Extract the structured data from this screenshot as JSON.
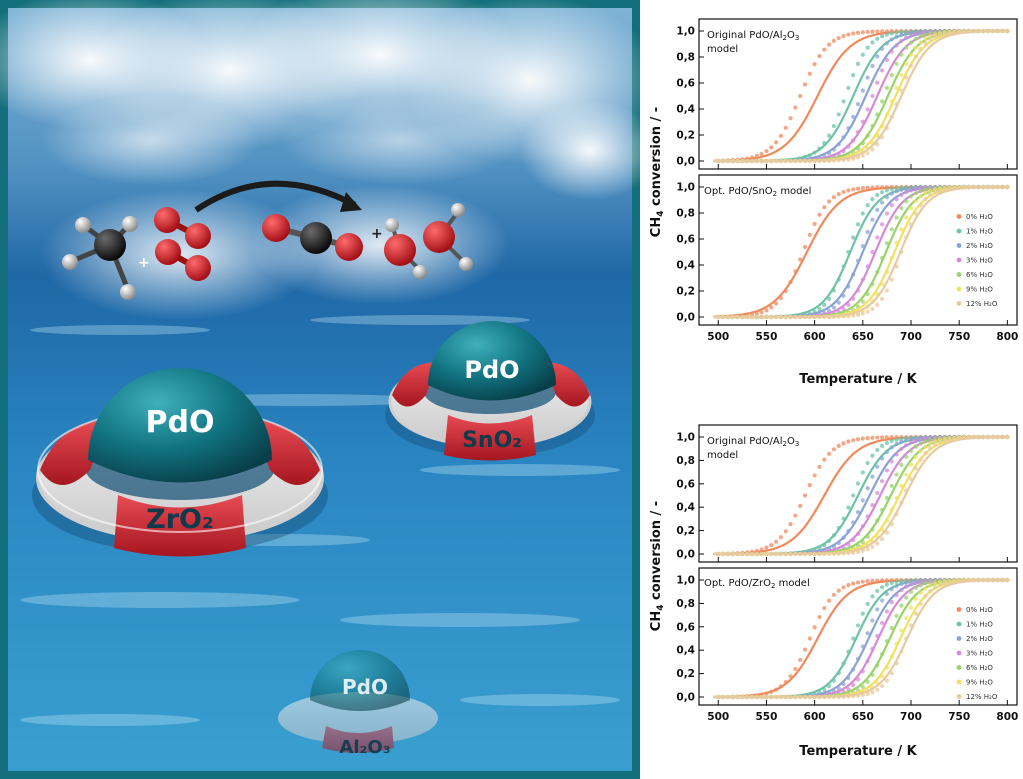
{
  "illustration": {
    "reactant_plus": "+",
    "product_plus": "+",
    "particle_large_label": "PdO",
    "support_large_label": "ZrO₂",
    "particle_right_label": "PdO",
    "support_right_label": "SnO₂",
    "particle_sunk_label": "PdO",
    "support_sunk_label": "Al₂O₃"
  },
  "chart_data": [
    {
      "type": "line",
      "panel": "top-upper",
      "annotation": "Original PdO/Al₂O₃ model",
      "annotation_line1": "Original PdO/Al",
      "annotation_line1_sub": "2",
      "annotation_line1_tail": "O",
      "annotation_line1_sub2": "3",
      "annotation_line2": "model",
      "ylim": [
        0,
        1.0
      ],
      "xlim": [
        480,
        810
      ],
      "yticks": [
        "0,0",
        "0,2",
        "0,4",
        "0,6",
        "0,8",
        "1,0"
      ],
      "grid": false,
      "series": [
        {
          "water": 0,
          "color": "#f08a5d",
          "model_T50": 603,
          "model_width": 17,
          "data_T50": 585,
          "data_width": 14
        },
        {
          "water": 1,
          "color": "#6cc3a6",
          "model_T50": 640,
          "model_width": 15,
          "data_T50": 632,
          "data_width": 12
        },
        {
          "water": 2,
          "color": "#8aa3d6",
          "model_T50": 653,
          "model_width": 15,
          "data_T50": 648,
          "data_width": 12
        },
        {
          "water": 3,
          "color": "#d68ad6",
          "model_T50": 665,
          "model_width": 15,
          "data_T50": 660,
          "data_width": 12
        },
        {
          "water": 6,
          "color": "#98d36a",
          "model_T50": 676,
          "model_width": 15,
          "data_T50": 672,
          "data_width": 12
        },
        {
          "water": 9,
          "color": "#f2e060",
          "model_T50": 684,
          "model_width": 15,
          "data_T50": 682,
          "data_width": 12
        },
        {
          "water": 12,
          "color": "#e8c9a0",
          "model_T50": 690,
          "model_width": 15,
          "data_T50": 688,
          "data_width": 12
        }
      ]
    },
    {
      "type": "line",
      "panel": "top-lower",
      "annotation": "Opt. PdO/SnO₂ model",
      "annotation_line1": "Opt. PdO/SnO",
      "annotation_line1_sub": "2",
      "annotation_line1_tail": " model",
      "ylim": [
        0,
        1.0
      ],
      "xlim": [
        480,
        810
      ],
      "xticks": [
        "500",
        "550",
        "600",
        "650",
        "700",
        "750",
        "800"
      ],
      "yticks": [
        "0,0",
        "0,2",
        "0,4",
        "0,6",
        "0,8",
        "1,0"
      ],
      "xlabel": "Temperature / K",
      "legend": [
        "0% H₂O",
        "1% H₂O",
        "2% H₂O",
        "3% H₂O",
        "6% H₂O",
        "9% H₂O",
        "12% H₂O"
      ],
      "legend_position": "right",
      "grid": false,
      "series": [
        {
          "water": 0,
          "color": "#f08a5d",
          "model_T50": 592,
          "model_width": 17,
          "data_T50": 588,
          "data_width": 13
        },
        {
          "water": 1,
          "color": "#6cc3a6",
          "model_T50": 637,
          "model_width": 14,
          "data_T50": 635,
          "data_width": 11
        },
        {
          "water": 2,
          "color": "#8aa3d6",
          "model_T50": 650,
          "model_width": 14,
          "data_T50": 648,
          "data_width": 11
        },
        {
          "water": 3,
          "color": "#d68ad6",
          "model_T50": 663,
          "model_width": 14,
          "data_T50": 660,
          "data_width": 11
        },
        {
          "water": 6,
          "color": "#98d36a",
          "model_T50": 674,
          "model_width": 14,
          "data_T50": 672,
          "data_width": 11
        },
        {
          "water": 9,
          "color": "#f2e060",
          "model_T50": 683,
          "model_width": 14,
          "data_T50": 682,
          "data_width": 11
        },
        {
          "water": 12,
          "color": "#e8c9a0",
          "model_T50": 689,
          "model_width": 14,
          "data_T50": 690,
          "data_width": 11
        }
      ]
    },
    {
      "type": "line",
      "panel": "bottom-upper",
      "annotation": "Original PdO/Al₂O₃ model",
      "annotation_line1": "Original PdO/Al",
      "annotation_line1_sub": "2",
      "annotation_line1_tail": "O",
      "annotation_line1_sub2": "3",
      "annotation_line2": "model",
      "ylim": [
        0,
        1.0
      ],
      "xlim": [
        480,
        810
      ],
      "yticks": [
        "0,0",
        "0,2",
        "0,4",
        "0,6",
        "0,8",
        "1,0"
      ],
      "grid": false,
      "series": [
        {
          "water": 0,
          "color": "#f08a5d",
          "model_T50": 610,
          "model_width": 17,
          "data_T50": 590,
          "data_width": 14
        },
        {
          "water": 1,
          "color": "#6cc3a6",
          "model_T50": 645,
          "model_width": 15,
          "data_T50": 640,
          "data_width": 12
        },
        {
          "water": 2,
          "color": "#8aa3d6",
          "model_T50": 657,
          "model_width": 15,
          "data_T50": 652,
          "data_width": 12
        },
        {
          "water": 3,
          "color": "#d68ad6",
          "model_T50": 668,
          "model_width": 15,
          "data_T50": 664,
          "data_width": 12
        },
        {
          "water": 6,
          "color": "#98d36a",
          "model_T50": 679,
          "model_width": 15,
          "data_T50": 676,
          "data_width": 12
        },
        {
          "water": 9,
          "color": "#f2e060",
          "model_T50": 688,
          "model_width": 15,
          "data_T50": 686,
          "data_width": 12
        },
        {
          "water": 12,
          "color": "#e8c9a0",
          "model_T50": 694,
          "model_width": 15,
          "data_T50": 693,
          "data_width": 12
        }
      ]
    },
    {
      "type": "line",
      "panel": "bottom-lower",
      "annotation": "Opt. PdO/ZrO₂ model",
      "annotation_line1": "Opt. PdO/ZrO",
      "annotation_line1_sub": "2",
      "annotation_line1_tail": " model",
      "ylim": [
        0,
        1.0
      ],
      "xlim": [
        480,
        810
      ],
      "xticks": [
        "500",
        "550",
        "600",
        "650",
        "700",
        "750",
        "800"
      ],
      "yticks": [
        "0,0",
        "0,2",
        "0,4",
        "0,6",
        "0,8",
        "1,0"
      ],
      "xlabel": "Temperature / K",
      "legend": [
        "0% H₂O",
        "1% H₂O",
        "2% H₂O",
        "3% H₂O",
        "6% H₂O",
        "9% H₂O",
        "12% H₂O"
      ],
      "legend_position": "right",
      "grid": false,
      "series": [
        {
          "water": 0,
          "color": "#f08a5d",
          "model_T50": 603,
          "model_width": 16,
          "data_T50": 595,
          "data_width": 13
        },
        {
          "water": 1,
          "color": "#6cc3a6",
          "model_T50": 643,
          "model_width": 14,
          "data_T50": 640,
          "data_width": 11
        },
        {
          "water": 2,
          "color": "#8aa3d6",
          "model_T50": 656,
          "model_width": 14,
          "data_T50": 653,
          "data_width": 11
        },
        {
          "water": 3,
          "color": "#d68ad6",
          "model_T50": 666,
          "model_width": 14,
          "data_T50": 664,
          "data_width": 11
        },
        {
          "water": 6,
          "color": "#98d36a",
          "model_T50": 678,
          "model_width": 14,
          "data_T50": 676,
          "data_width": 11
        },
        {
          "water": 9,
          "color": "#f2e060",
          "model_T50": 689,
          "model_width": 14,
          "data_T50": 687,
          "data_width": 11
        },
        {
          "water": 12,
          "color": "#e8c9a0",
          "model_T50": 696,
          "model_width": 14,
          "data_T50": 695,
          "data_width": 11
        }
      ]
    }
  ],
  "ylabel_main": "CH",
  "ylabel_sub": "4",
  "ylabel_tail": " conversion / -"
}
